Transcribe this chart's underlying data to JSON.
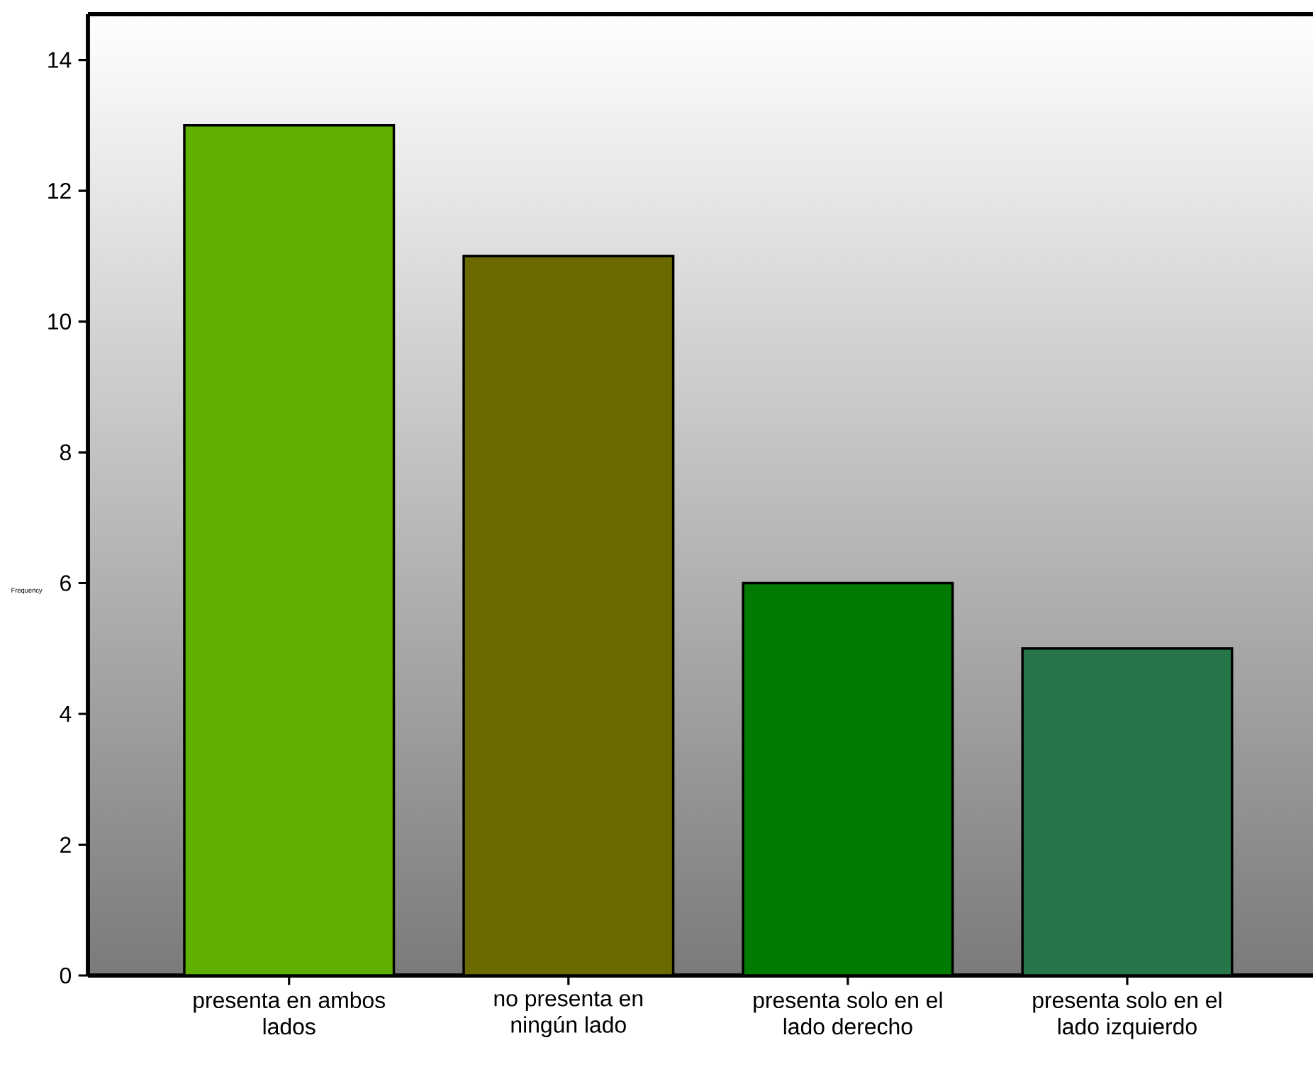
{
  "chart_data": {
    "type": "bar",
    "ylabel": "Frequency",
    "categories": [
      "presenta en ambos lados",
      "no presenta en ningún lado",
      "presenta solo en el lado derecho",
      "presenta solo en el lado izquierdo"
    ],
    "values": [
      13,
      11,
      6,
      5
    ],
    "colors": [
      "#5fb000",
      "#6a6a00",
      "#007a00",
      "#26764a"
    ],
    "ylim": [
      0,
      14.7
    ],
    "yticks": [
      0,
      2,
      4,
      6,
      8,
      10,
      12,
      14
    ],
    "grid": false
  }
}
